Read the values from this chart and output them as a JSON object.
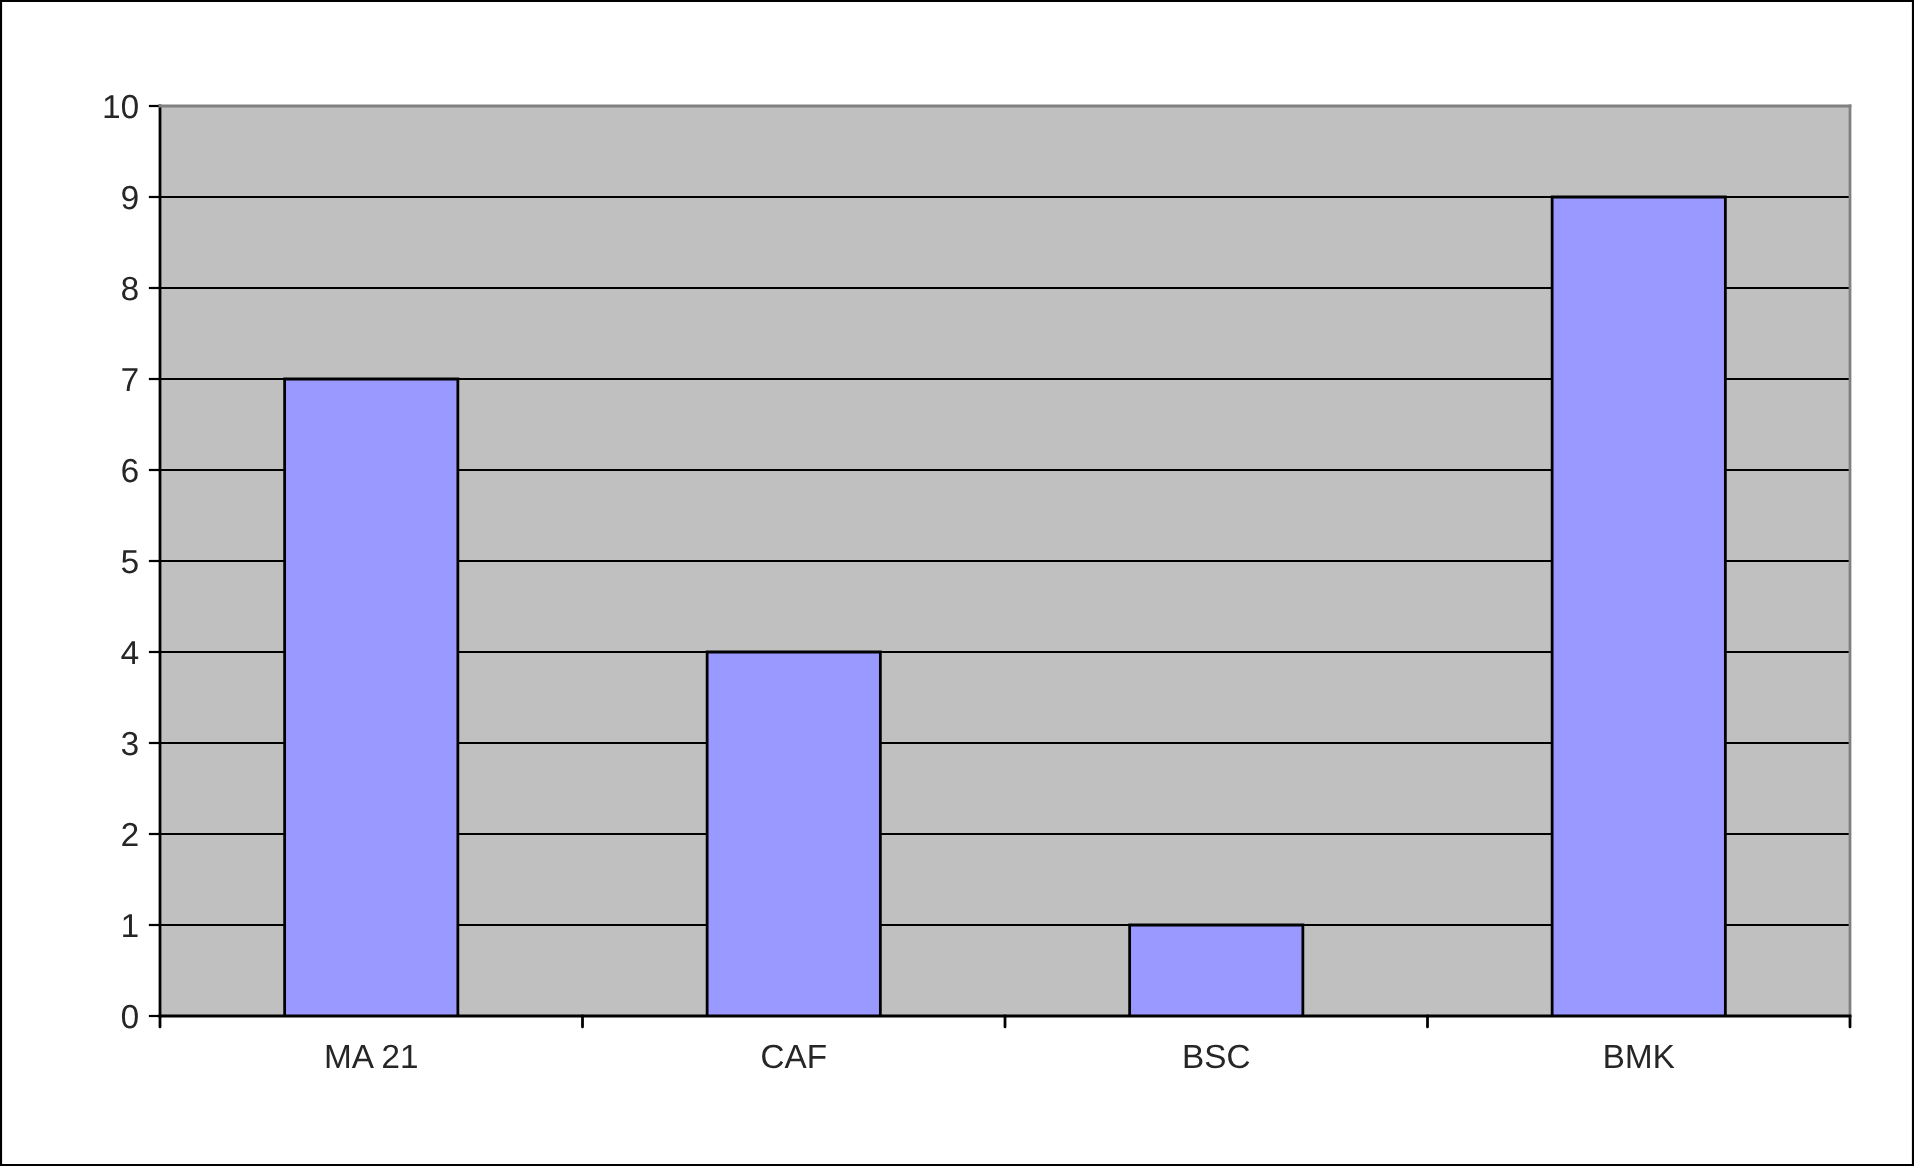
{
  "chart_data": {
    "type": "bar",
    "categories": [
      "MA 21",
      "CAF",
      "BSC",
      "BMK"
    ],
    "values": [
      7,
      4,
      1,
      9
    ],
    "color": "#9999ff",
    "ylim": [
      0,
      10
    ],
    "yticks": [
      0,
      1,
      2,
      3,
      4,
      5,
      6,
      7,
      8,
      9,
      10
    ],
    "grid": "y",
    "legend": false
  }
}
